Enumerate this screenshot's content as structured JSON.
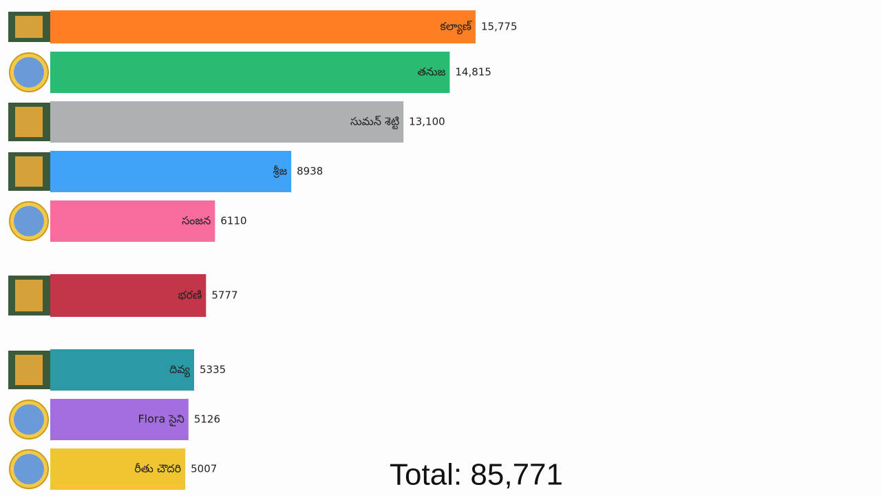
{
  "chart_data": {
    "type": "bar",
    "orientation": "horizontal",
    "categories": [
      "కల్యాణ్",
      "తనుజ",
      "సుమన్ శెట్టి",
      "శ్రీజ",
      "సంజన",
      "భరణి",
      "దివ్య",
      "Flora సైని",
      "రీతు చౌదరి"
    ],
    "values": [
      15775,
      14815,
      13100,
      8938,
      6110,
      5777,
      5335,
      5126,
      5007
    ],
    "value_labels": [
      "15,775",
      "14,815",
      "13,100",
      "8938",
      "6110",
      "5777",
      "5335",
      "5126",
      "5007"
    ],
    "colors": [
      "#fe7f22",
      "#2bba72",
      "#aeb1b3",
      "#3fa3f7",
      "#f76b9e",
      "#c3364a",
      "#2a9ba6",
      "#a56ee0",
      "#f0c531"
    ],
    "xlim": [
      0,
      15775
    ],
    "annotation": "Total: 85,771"
  }
}
